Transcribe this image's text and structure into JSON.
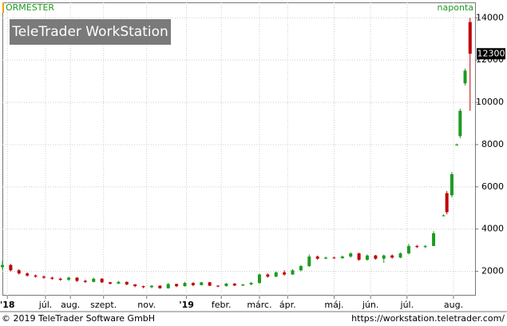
{
  "chart_data": {
    "type": "candlestick",
    "title": "ORMESTER",
    "period": "naponta",
    "watermark": "TeleTrader WorkStation",
    "last_price": 12300,
    "up_color": "#1e9a1e",
    "down_color": "#c00000",
    "xlim": [
      0,
      285
    ],
    "xticks": [
      {
        "value": 3,
        "label": "'18"
      },
      {
        "value": 26,
        "label": "júl."
      },
      {
        "value": 41,
        "label": "aug."
      },
      {
        "value": 61,
        "label": "szept."
      },
      {
        "value": 87,
        "label": "nov."
      },
      {
        "value": 111,
        "label": "'19"
      },
      {
        "value": 132,
        "label": "febr."
      },
      {
        "value": 155,
        "label": "márc."
      },
      {
        "value": 172,
        "label": "ápr."
      },
      {
        "value": 200,
        "label": "máj."
      },
      {
        "value": 222,
        "label": "jún."
      },
      {
        "value": 244,
        "label": "júl."
      },
      {
        "value": 272,
        "label": "aug."
      }
    ],
    "ylim": [
      850,
      14730
    ],
    "yticks": [
      2000,
      4000,
      6000,
      8000,
      10000,
      12000,
      14000
    ],
    "grid": true,
    "x": [
      0,
      5,
      10,
      15,
      20,
      25,
      30,
      35,
      40,
      45,
      50,
      55,
      60,
      65,
      70,
      75,
      80,
      85,
      90,
      95,
      100,
      105,
      110,
      115,
      120,
      125,
      130,
      135,
      140,
      145,
      150,
      155,
      160,
      165,
      170,
      175,
      180,
      185,
      190,
      195,
      200,
      205,
      210,
      215,
      220,
      225,
      230,
      235,
      240,
      245,
      250,
      255,
      260,
      266,
      268,
      271,
      274,
      276,
      279,
      282
    ],
    "open": [
      2200,
      2300,
      2050,
      1900,
      1800,
      1750,
      1700,
      1650,
      1600,
      1700,
      1550,
      1500,
      1650,
      1480,
      1420,
      1500,
      1380,
      1300,
      1250,
      1320,
      1200,
      1400,
      1300,
      1450,
      1350,
      1480,
      1320,
      1300,
      1420,
      1330,
      1380,
      1450,
      1850,
      1750,
      1950,
      1850,
      2050,
      2250,
      2700,
      2600,
      2650,
      2620,
      2700,
      2850,
      2550,
      2750,
      2600,
      2750,
      2650,
      2850,
      3200,
      3150,
      3200,
      4650,
      5700,
      5600,
      8000,
      8400,
      10900,
      13800
    ],
    "high": [
      2500,
      2350,
      2100,
      1950,
      1850,
      1800,
      1750,
      1700,
      1750,
      1720,
      1600,
      1700,
      1680,
      1500,
      1550,
      1520,
      1400,
      1320,
      1350,
      1340,
      1450,
      1420,
      1500,
      1480,
      1500,
      1500,
      1350,
      1450,
      1440,
      1400,
      1500,
      1900,
      1900,
      2000,
      2050,
      2100,
      2300,
      2800,
      2750,
      2700,
      2700,
      2750,
      2900,
      2880,
      2800,
      2780,
      2800,
      2800,
      2900,
      3300,
      3250,
      3250,
      3900,
      4700,
      5800,
      6700,
      8050,
      9700,
      11600,
      14000
    ],
    "low": [
      2100,
      2000,
      1850,
      1750,
      1700,
      1650,
      1600,
      1550,
      1550,
      1500,
      1450,
      1480,
      1450,
      1380,
      1400,
      1350,
      1250,
      1200,
      1200,
      1180,
      1180,
      1250,
      1280,
      1300,
      1330,
      1300,
      1250,
      1280,
      1300,
      1300,
      1350,
      1400,
      1700,
      1730,
      1800,
      1830,
      2000,
      2200,
      2550,
      2580,
      2600,
      2600,
      2650,
      2500,
      2500,
      2550,
      2400,
      2600,
      2620,
      2800,
      3100,
      3100,
      3200,
      4600,
      4700,
      5500,
      7950,
      8300,
      10800,
      9600
    ],
    "close": [
      2300,
      2050,
      1900,
      1800,
      1750,
      1700,
      1650,
      1600,
      1700,
      1550,
      1500,
      1650,
      1480,
      1420,
      1500,
      1380,
      1300,
      1250,
      1320,
      1200,
      1400,
      1300,
      1450,
      1350,
      1480,
      1320,
      1300,
      1420,
      1330,
      1380,
      1450,
      1850,
      1750,
      1950,
      1850,
      2050,
      2250,
      2700,
      2600,
      2650,
      2620,
      2700,
      2850,
      2550,
      2750,
      2600,
      2750,
      2650,
      2850,
      3200,
      3150,
      3200,
      3800,
      4650,
      4800,
      6600,
      8000,
      9600,
      11500,
      12300
    ]
  },
  "footer": {
    "copyright": "© 2019 TeleTrader Software GmbH",
    "url": "https://workstation.teletrader.com/"
  }
}
